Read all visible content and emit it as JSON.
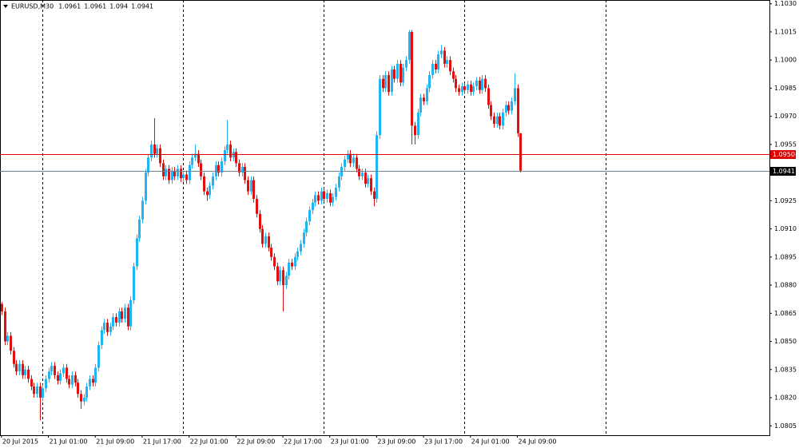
{
  "chart_data": {
    "type": "candlestick",
    "title": "EURUSD,M30",
    "header_values": [
      1.0961,
      1.0961,
      1.094,
      1.0941
    ],
    "bull_color": "#1fb4f2",
    "bear_color": "#e01010",
    "xlim": [
      -0.5,
      262
    ],
    "ylim": [
      1.08,
      1.1032
    ],
    "yticks": [
      {
        "value": 1.103,
        "label": "1.1030"
      },
      1.1015,
      {
        "value": 1.1,
        "label": "1.1000"
      },
      1.0985,
      {
        "value": 1.097,
        "label": "1.0970"
      },
      1.0955,
      1.0925,
      {
        "value": 1.091,
        "label": "1.0910"
      },
      1.0895,
      {
        "value": 1.088,
        "label": "1.0880"
      },
      1.0865,
      {
        "value": 1.085,
        "label": "1.0850"
      },
      1.0835,
      {
        "value": 1.082,
        "label": "1.0820"
      },
      1.0805
    ],
    "xticks": [
      {
        "value": 0,
        "label": "20 Jul 2015"
      },
      {
        "value": 16,
        "label": "21 Jul 01:00"
      },
      {
        "value": 32,
        "label": "21 Jul 09:00"
      },
      {
        "value": 48,
        "label": "21 Jul 17:00"
      },
      {
        "value": 64,
        "label": "22 Jul 01:00"
      },
      {
        "value": 80,
        "label": "22 Jul 09:00"
      },
      {
        "value": 96,
        "label": "22 Jul 17:00"
      },
      {
        "value": 112,
        "label": "23 Jul 01:00"
      },
      {
        "value": 128,
        "label": "23 Jul 09:00"
      },
      {
        "value": 144,
        "label": "23 Jul 17:00"
      },
      {
        "value": 160,
        "label": "24 Jul 01:00"
      },
      {
        "value": 176,
        "label": "24 Jul 09:00"
      }
    ],
    "separators": [
      14,
      62,
      110,
      158,
      206
    ],
    "levels": [
      {
        "value": 1.095,
        "label": "1.0950",
        "color": "#e00000"
      },
      {
        "value": 1.0941,
        "label": "1.0941",
        "color": "#000000"
      }
    ],
    "open": [
      1.087,
      1.0866,
      1.085,
      1.0853,
      1.0845,
      1.0838,
      1.0834,
      1.0838,
      1.0832,
      1.0835,
      1.083,
      1.0826,
      1.0822,
      1.0826,
      1.082,
      1.0825,
      1.083,
      1.0834,
      1.0837,
      1.0832,
      1.0829,
      1.0833,
      1.0836,
      1.083,
      1.0827,
      1.0832,
      1.0828,
      1.0822,
      1.0818,
      1.082,
      1.0826,
      1.083,
      1.0828,
      1.0836,
      1.0848,
      1.0856,
      1.086,
      1.0855,
      1.0858,
      1.0863,
      1.086,
      1.0866,
      1.0862,
      1.0868,
      1.0858,
      1.0872,
      1.089,
      1.0905,
      1.0915,
      1.0925,
      1.094,
      1.0948,
      1.0955,
      1.095,
      1.0953,
      1.0945,
      1.0938,
      1.0942,
      1.0936,
      1.0941,
      1.0938,
      1.0942,
      1.0937,
      1.0939,
      1.0936,
      1.0944,
      1.0948,
      1.095,
      1.0945,
      1.0938,
      1.093,
      1.0928,
      1.0933,
      1.0938,
      1.0944,
      1.094,
      1.0946,
      1.0952,
      1.0955,
      1.0948,
      1.0951,
      1.0945,
      1.094,
      1.0943,
      1.0936,
      1.093,
      1.0936,
      1.0926,
      1.0918,
      1.091,
      1.0902,
      1.0906,
      1.09,
      1.0895,
      1.089,
      1.0882,
      1.0888,
      1.088,
      1.0885,
      1.0892,
      1.089,
      1.0895,
      1.0898,
      1.0902,
      1.0908,
      1.0914,
      1.092,
      1.0924,
      1.0928,
      1.0925,
      1.093,
      1.0926,
      1.0929,
      1.0924,
      1.0927,
      1.0932,
      1.0938,
      1.0943,
      1.0947,
      1.095,
      1.0945,
      1.0948,
      1.0942,
      1.0938,
      1.094,
      1.0934,
      1.0937,
      1.093,
      1.0926,
      1.096,
      1.099,
      1.0985,
      1.0992,
      1.0983,
      1.0995,
      1.099,
      1.0998,
      1.0988,
      1.0996,
      1.1,
      1.1015,
      1.0965,
      1.096,
      1.0972,
      1.098,
      1.0978,
      1.0985,
      1.0992,
      1.0998,
      1.0995,
      1.1003,
      1.1005,
      1.0998,
      1.1,
      1.0994,
      1.099,
      1.0985,
      1.0983,
      1.0986,
      1.0984,
      1.0987,
      1.0983,
      1.0986,
      1.0989,
      1.0984,
      1.099,
      1.0985,
      1.0976,
      1.097,
      1.0966,
      1.097,
      1.0965,
      1.0972,
      1.0976,
      1.0973,
      1.0978,
      1.0985,
      1.0961
    ],
    "high": [
      1.0871,
      1.0868,
      1.0855,
      1.0855,
      1.0847,
      1.084,
      1.084,
      1.084,
      1.0837,
      1.0837,
      1.0832,
      1.0828,
      1.0828,
      1.0828,
      1.0827,
      1.0832,
      1.0836,
      1.0839,
      1.0839,
      1.0834,
      1.0835,
      1.0838,
      1.0838,
      1.0832,
      1.0834,
      1.0834,
      1.083,
      1.0824,
      1.0822,
      1.0828,
      1.0832,
      1.0832,
      1.0838,
      1.085,
      1.0858,
      1.0862,
      1.0862,
      1.086,
      1.0865,
      1.0865,
      1.0868,
      1.0868,
      1.087,
      1.087,
      1.0874,
      1.0892,
      1.0907,
      1.0917,
      1.0927,
      1.0942,
      1.095,
      1.0957,
      1.0969,
      1.0955,
      1.0955,
      1.0947,
      1.0944,
      1.0944,
      1.0943,
      1.0943,
      1.0944,
      1.0944,
      1.0941,
      1.0941,
      1.0946,
      1.095,
      1.0955,
      1.0952,
      1.0947,
      1.094,
      1.0932,
      1.0935,
      1.094,
      1.0946,
      1.0946,
      1.0948,
      1.0954,
      1.0968,
      1.0957,
      1.0953,
      1.0953,
      1.0947,
      1.0945,
      1.0945,
      1.0938,
      1.0938,
      1.0938,
      1.0928,
      1.092,
      1.0912,
      1.0908,
      1.0908,
      1.0902,
      1.0897,
      1.0892,
      1.089,
      1.089,
      1.0887,
      1.0894,
      1.0894,
      1.0897,
      1.09,
      1.0904,
      1.091,
      1.0916,
      1.0922,
      1.0926,
      1.093,
      1.093,
      1.0932,
      1.0932,
      1.0931,
      1.0931,
      1.0929,
      1.0934,
      1.094,
      1.0945,
      1.0949,
      1.0952,
      1.0952,
      1.095,
      1.095,
      1.0944,
      1.0942,
      1.0942,
      1.0939,
      1.0939,
      1.0932,
      1.0962,
      1.0992,
      1.0992,
      1.0994,
      1.0994,
      1.0997,
      1.0997,
      1.1,
      1.1,
      1.0998,
      1.1002,
      1.1016,
      1.1016,
      1.0967,
      1.0974,
      1.0982,
      1.0982,
      1.0987,
      1.0994,
      1.1,
      1.1,
      1.1005,
      1.1008,
      1.1007,
      1.1002,
      1.1002,
      1.0996,
      1.0992,
      1.0987,
      1.0988,
      1.0988,
      1.0989,
      1.0989,
      1.0988,
      1.0991,
      1.0991,
      1.0992,
      1.0992,
      1.0987,
      1.0978,
      1.0972,
      1.0972,
      1.0972,
      1.0974,
      1.0978,
      1.0978,
      1.098,
      1.0993,
      1.0987,
      1.0961
    ],
    "low": [
      1.0864,
      1.0848,
      1.0848,
      1.0843,
      1.0836,
      1.0832,
      1.0832,
      1.083,
      1.083,
      1.0828,
      1.0824,
      1.082,
      1.082,
      1.0808,
      1.0818,
      1.0823,
      1.0828,
      1.0832,
      1.083,
      1.0827,
      1.0827,
      1.0831,
      1.0828,
      1.0825,
      1.0825,
      1.0826,
      1.082,
      1.0814,
      1.0816,
      1.0818,
      1.0824,
      1.0826,
      1.0826,
      1.0834,
      1.0846,
      1.0854,
      1.0853,
      1.0853,
      1.0856,
      1.0858,
      1.0858,
      1.086,
      1.086,
      1.0856,
      1.0856,
      1.087,
      1.0888,
      1.0903,
      1.0913,
      1.0923,
      1.0938,
      1.0946,
      1.0948,
      1.0948,
      1.0943,
      1.0936,
      1.0936,
      1.0934,
      1.0934,
      1.0936,
      1.0936,
      1.0935,
      1.0935,
      1.0934,
      1.0934,
      1.0942,
      1.0946,
      1.0943,
      1.0936,
      1.0928,
      1.0925,
      1.0926,
      1.0931,
      1.0936,
      1.0938,
      1.0938,
      1.0944,
      1.095,
      1.0946,
      1.0946,
      1.0943,
      1.0938,
      1.0938,
      1.0934,
      1.0928,
      1.0928,
      1.0924,
      1.0916,
      1.0908,
      1.09,
      1.09,
      1.0898,
      1.0893,
      1.0888,
      1.088,
      1.088,
      1.0866,
      1.0878,
      1.0883,
      1.0888,
      1.0888,
      1.0893,
      1.0896,
      1.09,
      1.0906,
      1.0912,
      1.0918,
      1.0922,
      1.0923,
      1.0923,
      1.0924,
      1.0924,
      1.0922,
      1.0922,
      1.0925,
      1.093,
      1.0936,
      1.0941,
      1.0945,
      1.0943,
      1.0943,
      1.094,
      1.0936,
      1.0936,
      1.0932,
      1.0932,
      1.0928,
      1.0922,
      1.0924,
      1.0958,
      1.0983,
      1.0983,
      1.0981,
      1.0981,
      1.0988,
      1.0988,
      1.0986,
      1.0986,
      1.0994,
      1.0998,
      1.0955,
      1.0955,
      1.0958,
      1.097,
      1.0976,
      1.0976,
      1.0983,
      1.099,
      1.0993,
      1.0993,
      1.1001,
      1.0996,
      1.0996,
      1.0992,
      1.0988,
      1.0983,
      1.0981,
      1.0981,
      1.0982,
      1.0982,
      1.0981,
      1.0981,
      1.0984,
      1.0982,
      1.0982,
      1.0983,
      1.0974,
      1.0968,
      1.0964,
      1.0964,
      1.0963,
      1.0963,
      1.097,
      1.0971,
      1.0971,
      1.0976,
      1.0959,
      1.094
    ],
    "close": [
      1.0866,
      1.085,
      1.0853,
      1.0845,
      1.0838,
      1.0834,
      1.0838,
      1.0832,
      1.0835,
      1.083,
      1.0826,
      1.0822,
      1.0826,
      1.082,
      1.0825,
      1.083,
      1.0834,
      1.0837,
      1.0832,
      1.0829,
      1.0833,
      1.0836,
      1.083,
      1.0827,
      1.0832,
      1.0828,
      1.0822,
      1.0818,
      1.082,
      1.0826,
      1.083,
      1.0828,
      1.0836,
      1.0848,
      1.0856,
      1.086,
      1.0855,
      1.0858,
      1.0863,
      1.086,
      1.0866,
      1.0862,
      1.0868,
      1.0858,
      1.0872,
      1.089,
      1.0905,
      1.0915,
      1.0925,
      1.094,
      1.0948,
      1.0955,
      1.095,
      1.0953,
      1.0945,
      1.0938,
      1.0942,
      1.0936,
      1.0941,
      1.0938,
      1.0942,
      1.0937,
      1.0939,
      1.0936,
      1.0944,
      1.0948,
      1.095,
      1.0945,
      1.0938,
      1.093,
      1.0928,
      1.0933,
      1.0938,
      1.0944,
      1.094,
      1.0946,
      1.0952,
      1.0955,
      1.0948,
      1.0951,
      1.0945,
      1.094,
      1.0943,
      1.0936,
      1.093,
      1.0936,
      1.0926,
      1.0918,
      1.091,
      1.0902,
      1.0906,
      1.09,
      1.0895,
      1.089,
      1.0882,
      1.0888,
      1.088,
      1.0885,
      1.0892,
      1.089,
      1.0895,
      1.0898,
      1.0902,
      1.0908,
      1.0914,
      1.092,
      1.0924,
      1.0928,
      1.0925,
      1.093,
      1.0926,
      1.0929,
      1.0924,
      1.0927,
      1.0932,
      1.0938,
      1.0943,
      1.0947,
      1.095,
      1.0945,
      1.0948,
      1.0942,
      1.0938,
      1.094,
      1.0934,
      1.0937,
      1.093,
      1.0926,
      1.096,
      1.099,
      1.0985,
      1.0992,
      1.0983,
      1.0995,
      1.099,
      1.0998,
      1.0988,
      1.0996,
      1.1,
      1.1015,
      1.0965,
      1.096,
      1.0972,
      1.098,
      1.0978,
      1.0985,
      1.0992,
      1.0998,
      1.0995,
      1.1003,
      1.1005,
      1.0998,
      1.1,
      1.0994,
      1.099,
      1.0985,
      1.0983,
      1.0986,
      1.0984,
      1.0987,
      1.0983,
      1.0986,
      1.0989,
      1.0984,
      1.099,
      1.0985,
      1.0976,
      1.097,
      1.0966,
      1.097,
      1.0965,
      1.0972,
      1.0976,
      1.0973,
      1.0978,
      1.0985,
      1.0961,
      1.0941
    ]
  }
}
